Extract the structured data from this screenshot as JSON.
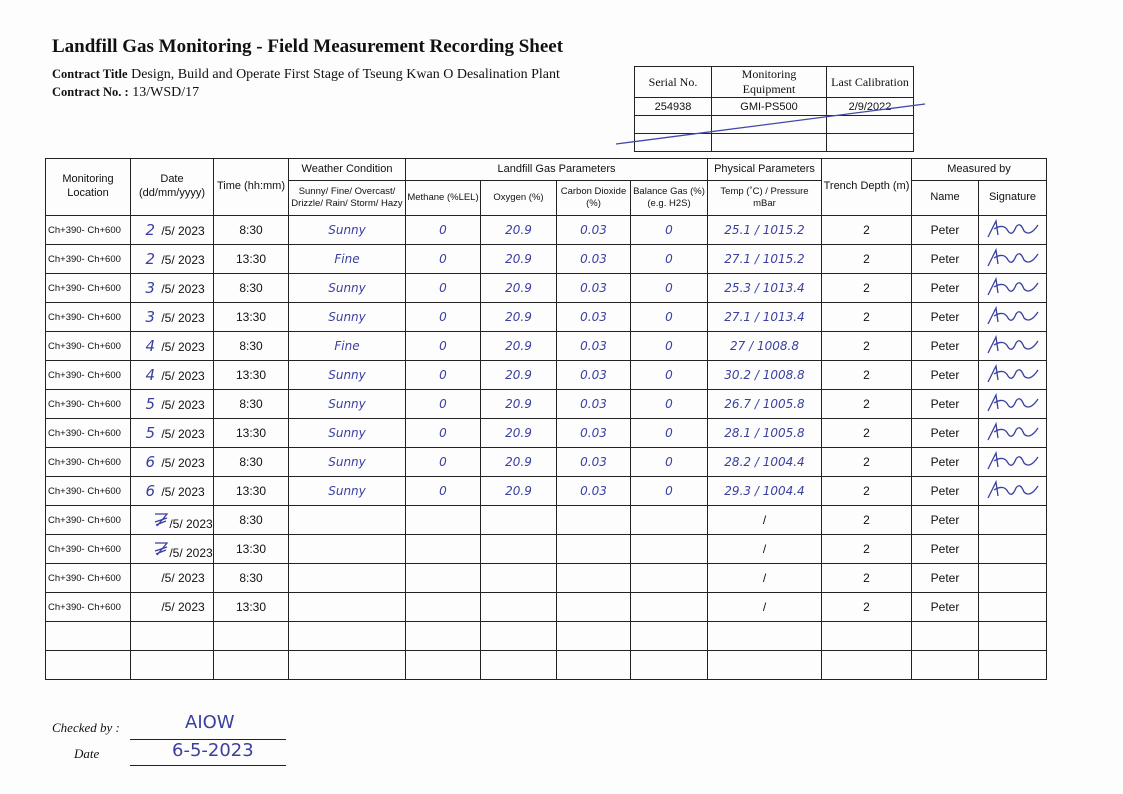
{
  "title": "Landfill Gas Monitoring - Field Measurement Recording Sheet",
  "contract": {
    "title_label": "Contract Title",
    "title": "Design, Build and Operate First Stage of Tseung Kwan O Desalination Plant",
    "no_label": "Contract No. :",
    "no": "13/WSD/17"
  },
  "equipment": {
    "headers": [
      "Serial No.",
      "Monitoring Equipment",
      "Last Calibration"
    ],
    "serial": "254938",
    "equipment": "GMI-PS500",
    "calibration": "2/9/2022"
  },
  "headers": {
    "location": "Monitoring Location",
    "date": "Date (dd/mm/yyyy)",
    "time": "Time (hh:mm)",
    "weather": "Weather Condition",
    "weather_sub": "Sunny/ Fine/ Overcast/ Drizzle/ Rain/ Storm/ Hazy",
    "gas": "Landfill Gas Parameters",
    "methane": "Methane (%LEL)",
    "oxygen": "Oxygen (%)",
    "co2": "Carbon Dioxide (%)",
    "balance": "Balance Gas (%) (e.g. H2S)",
    "physical": "Physical Parameters",
    "temp": "Temp (˚C) / Pressure mBar",
    "depth": "Trench Depth (m)",
    "measured": "Measured by",
    "name": "Name",
    "signature": "Signature"
  },
  "rows": [
    {
      "location": "Ch+390- Ch+600",
      "day": "2",
      "date": "/5/ 2023",
      "time": "8:30",
      "weather": "Sunny",
      "methane": "0",
      "oxygen": "20.9",
      "co2": "0.03",
      "balance": "0",
      "temp_pressure": "25.1 / 1015.2",
      "depth": "2",
      "name": "Peter",
      "signed": true
    },
    {
      "location": "Ch+390- Ch+600",
      "day": "2",
      "date": "/5/ 2023",
      "time": "13:30",
      "weather": "Fine",
      "methane": "0",
      "oxygen": "20.9",
      "co2": "0.03",
      "balance": "0",
      "temp_pressure": "27.1 / 1015.2",
      "depth": "2",
      "name": "Peter",
      "signed": true
    },
    {
      "location": "Ch+390- Ch+600",
      "day": "3",
      "date": "/5/ 2023",
      "time": "8:30",
      "weather": "Sunny",
      "methane": "0",
      "oxygen": "20.9",
      "co2": "0.03",
      "balance": "0",
      "temp_pressure": "25.3 / 1013.4",
      "depth": "2",
      "name": "Peter",
      "signed": true
    },
    {
      "location": "Ch+390- Ch+600",
      "day": "3",
      "date": "/5/ 2023",
      "time": "13:30",
      "weather": "Sunny",
      "methane": "0",
      "oxygen": "20.9",
      "co2": "0.03",
      "balance": "0",
      "temp_pressure": "27.1 / 1013.4",
      "depth": "2",
      "name": "Peter",
      "signed": true
    },
    {
      "location": "Ch+390- Ch+600",
      "day": "4",
      "date": "/5/ 2023",
      "time": "8:30",
      "weather": "Fine",
      "methane": "0",
      "oxygen": "20.9",
      "co2": "0.03",
      "balance": "0",
      "temp_pressure": "27 / 1008.8",
      "depth": "2",
      "name": "Peter",
      "signed": true
    },
    {
      "location": "Ch+390- Ch+600",
      "day": "4",
      "date": "/5/ 2023",
      "time": "13:30",
      "weather": "Sunny",
      "methane": "0",
      "oxygen": "20.9",
      "co2": "0.03",
      "balance": "0",
      "temp_pressure": "30.2 / 1008.8",
      "depth": "2",
      "name": "Peter",
      "signed": true
    },
    {
      "location": "Ch+390- Ch+600",
      "day": "5",
      "date": "/5/ 2023",
      "time": "8:30",
      "weather": "Sunny",
      "methane": "0",
      "oxygen": "20.9",
      "co2": "0.03",
      "balance": "0",
      "temp_pressure": "26.7 / 1005.8",
      "depth": "2",
      "name": "Peter",
      "signed": true
    },
    {
      "location": "Ch+390- Ch+600",
      "day": "5",
      "date": "/5/ 2023",
      "time": "13:30",
      "weather": "Sunny",
      "methane": "0",
      "oxygen": "20.9",
      "co2": "0.03",
      "balance": "0",
      "temp_pressure": "28.1 / 1005.8",
      "depth": "2",
      "name": "Peter",
      "signed": true
    },
    {
      "location": "Ch+390- Ch+600",
      "day": "6",
      "date": "/5/ 2023",
      "time": "8:30",
      "weather": "Sunny",
      "methane": "0",
      "oxygen": "20.9",
      "co2": "0.03",
      "balance": "0",
      "temp_pressure": "28.2 / 1004.4",
      "depth": "2",
      "name": "Peter",
      "signed": true
    },
    {
      "location": "Ch+390- Ch+600",
      "day": "6",
      "date": "/5/ 2023",
      "time": "13:30",
      "weather": "Sunny",
      "methane": "0",
      "oxygen": "20.9",
      "co2": "0.03",
      "balance": "0",
      "temp_pressure": "29.3 / 1004.4",
      "depth": "2",
      "name": "Peter",
      "signed": true
    },
    {
      "location": "Ch+390- Ch+600",
      "day": "",
      "date": "/5/ 2023",
      "time": "8:30",
      "weather": "",
      "methane": "",
      "oxygen": "",
      "co2": "",
      "balance": "",
      "temp_pressure": "/",
      "depth": "2",
      "name": "Peter",
      "signed": false,
      "struck": true
    },
    {
      "location": "Ch+390- Ch+600",
      "day": "",
      "date": "/5/ 2023",
      "time": "13:30",
      "weather": "",
      "methane": "",
      "oxygen": "",
      "co2": "",
      "balance": "",
      "temp_pressure": "/",
      "depth": "2",
      "name": "Peter",
      "signed": false,
      "struck": true
    },
    {
      "location": "Ch+390- Ch+600",
      "day": "",
      "date": "/5/ 2023",
      "time": "8:30",
      "weather": "",
      "methane": "",
      "oxygen": "",
      "co2": "",
      "balance": "",
      "temp_pressure": "/",
      "depth": "2",
      "name": "Peter",
      "signed": false
    },
    {
      "location": "Ch+390- Ch+600",
      "day": "",
      "date": "/5/ 2023",
      "time": "13:30",
      "weather": "",
      "methane": "",
      "oxygen": "",
      "co2": "",
      "balance": "",
      "temp_pressure": "/",
      "depth": "2",
      "name": "Peter",
      "signed": false
    },
    {},
    {}
  ],
  "footer": {
    "checked_label": "Checked by :",
    "checked_value": "AIOW",
    "date_label": "Date",
    "date_value": "6-5-2023"
  },
  "colors": {
    "ink": "#3a3fa0"
  }
}
